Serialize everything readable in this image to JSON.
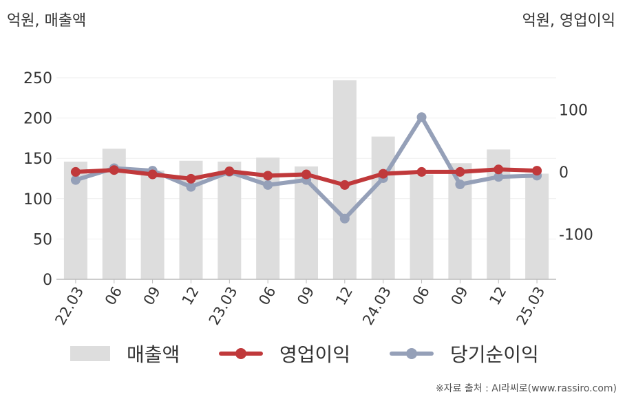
{
  "units": {
    "left": "억원, 매출액",
    "right": "억원, 영업이익"
  },
  "source": "※자료 출처 : AI라씨로(www.rassiro.com)",
  "colors": {
    "revenue": "#dddddd",
    "operating_profit": "#c0393b",
    "net_income": "#95a0b8",
    "axis": "#bbbbbb",
    "grid": "#eeeeee",
    "text": "#333333"
  },
  "chart_data": {
    "type": "bar",
    "categories": [
      "22.03",
      "06",
      "09",
      "12",
      "23.03",
      "06",
      "09",
      "12",
      "24.03",
      "06",
      "09",
      "12",
      "25.03"
    ],
    "y_left": {
      "ticks": [
        0,
        50,
        100,
        150,
        200,
        250
      ],
      "ylim": [
        0,
        250
      ]
    },
    "y_right": {
      "ticks": [
        -100,
        0,
        100
      ],
      "ylim": [
        -170,
        170
      ]
    },
    "grid": true,
    "legend_position": "bottom",
    "series": [
      {
        "name": "매출액",
        "type": "bar",
        "axis": "left",
        "color": "#dddddd",
        "values": [
          146,
          162,
          135,
          147,
          146,
          151,
          140,
          247,
          177,
          130,
          144,
          161,
          131
        ]
      },
      {
        "name": "영업이익",
        "type": "line",
        "axis": "right",
        "color": "#c0393b",
        "values": [
          -1,
          2,
          -5,
          -12,
          0,
          -7,
          -5,
          -22,
          -4,
          -1,
          -1,
          3,
          1
        ]
      },
      {
        "name": "당기순이익",
        "type": "line",
        "axis": "right",
        "color": "#95a0b8",
        "values": [
          -14,
          5,
          1,
          -25,
          -1,
          -22,
          -14,
          -76,
          -11,
          87,
          -21,
          -9,
          -7
        ]
      }
    ]
  }
}
